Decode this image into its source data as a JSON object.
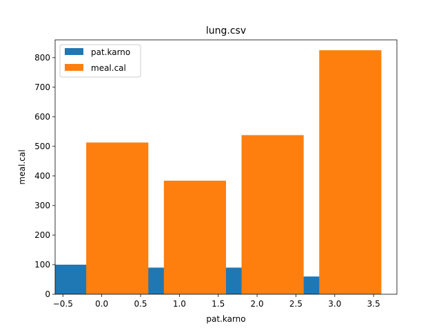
{
  "chart_data": {
    "type": "bar",
    "title": "lung.csv",
    "xlabel": "pat.karno",
    "ylabel": "meal.cal",
    "xlim": [
      -0.6,
      3.8
    ],
    "ylim": [
      0,
      860
    ],
    "xticks": [
      -0.5,
      0.0,
      0.5,
      1.0,
      1.5,
      2.0,
      2.5,
      3.0,
      3.5
    ],
    "xtick_labels": [
      "−0.5",
      "0.0",
      "0.5",
      "1.0",
      "1.5",
      "2.0",
      "2.5",
      "3.0",
      "3.5"
    ],
    "yticks": [
      0,
      100,
      200,
      300,
      400,
      500,
      600,
      700,
      800
    ],
    "ytick_labels": [
      "0",
      "100",
      "200",
      "300",
      "400",
      "500",
      "600",
      "700",
      "800"
    ],
    "grid": false,
    "legend_position": "top-left",
    "series": [
      {
        "name": "pat.karno",
        "color": "#1f77b4",
        "x": [
          0,
          1,
          2,
          3
        ],
        "values": [
          100,
          90,
          90,
          60
        ]
      },
      {
        "name": "meal.cal",
        "color": "#ff7f0e",
        "x": [
          0,
          1,
          2,
          3
        ],
        "values": [
          513,
          384,
          538,
          825
        ]
      }
    ]
  }
}
